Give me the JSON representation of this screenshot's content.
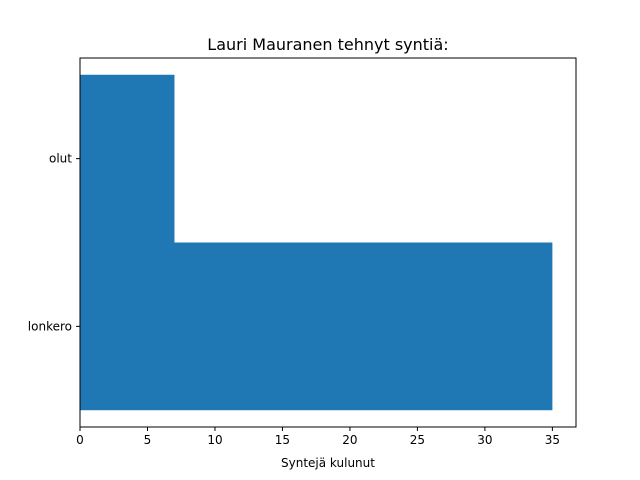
{
  "chart_data": {
    "type": "bar",
    "orientation": "horizontal",
    "title": "Lauri Mauranen tehnyt syntiä:",
    "xlabel": "Syntejä kulunut",
    "ylabel": "",
    "categories": [
      "lonkero",
      "olut"
    ],
    "values": [
      35,
      7
    ],
    "xlim": [
      0,
      36.75
    ],
    "xticks": [
      0,
      5,
      10,
      15,
      20,
      25,
      30,
      35
    ],
    "bar_color": "#1f77b4",
    "grid": false,
    "legend": "none"
  }
}
